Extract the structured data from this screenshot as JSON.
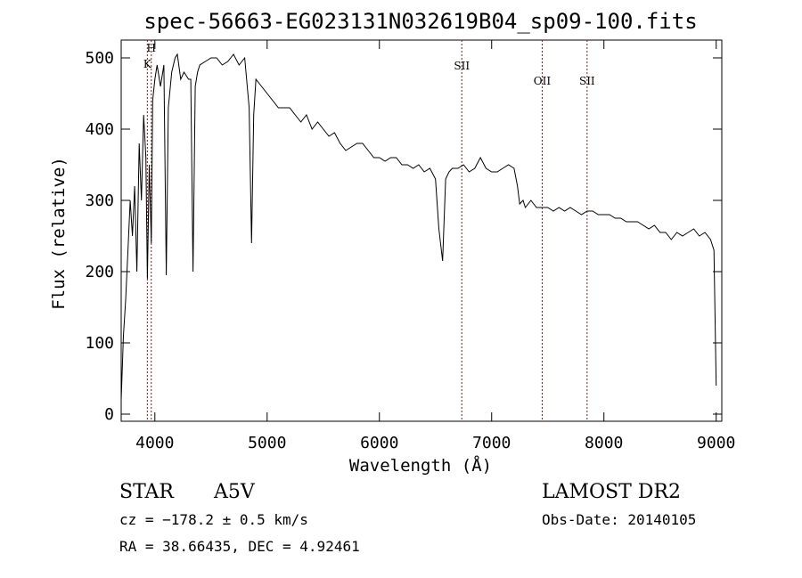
{
  "chart_data": {
    "type": "line",
    "title": "spec-56663-EG023131N032619B04_sp09-100.fits",
    "xlabel": "Wavelength (Å)",
    "ylabel": "Flux (relative)",
    "xlim": [
      3700,
      9050
    ],
    "ylim": [
      -10,
      525
    ],
    "x_ticks": [
      4000,
      5000,
      6000,
      7000,
      8000,
      9000
    ],
    "y_ticks": [
      0,
      100,
      200,
      300,
      400,
      500
    ],
    "grid": false,
    "series": [
      {
        "x": [
          3700,
          3720,
          3740,
          3760,
          3780,
          3800,
          3820,
          3840,
          3860,
          3880,
          3900,
          3920,
          3933,
          3950,
          3968,
          3980,
          4000,
          4020,
          4050,
          4080,
          4102,
          4120,
          4150,
          4180,
          4200,
          4230,
          4260,
          4300,
          4320,
          4340,
          4360,
          4380,
          4400,
          4450,
          4500,
          4550,
          4600,
          4650,
          4700,
          4750,
          4800,
          4840,
          4861,
          4880,
          4900,
          4950,
          5000,
          5050,
          5100,
          5150,
          5200,
          5250,
          5300,
          5350,
          5400,
          5450,
          5500,
          5550,
          5600,
          5650,
          5700,
          5750,
          5800,
          5850,
          5900,
          5950,
          6000,
          6050,
          6100,
          6150,
          6200,
          6250,
          6300,
          6350,
          6400,
          6450,
          6500,
          6530,
          6563,
          6590,
          6620,
          6650,
          6700,
          6750,
          6800,
          6850,
          6900,
          6950,
          7000,
          7050,
          7100,
          7150,
          7200,
          7230,
          7250,
          7280,
          7300,
          7350,
          7400,
          7450,
          7500,
          7550,
          7600,
          7650,
          7700,
          7750,
          7800,
          7850,
          7900,
          7950,
          8000,
          8050,
          8100,
          8150,
          8200,
          8250,
          8300,
          8350,
          8400,
          8450,
          8500,
          8550,
          8600,
          8650,
          8700,
          8750,
          8800,
          8850,
          8900,
          8950,
          8980,
          9000
        ],
        "y": [
          20,
          110,
          160,
          230,
          300,
          250,
          320,
          200,
          380,
          300,
          420,
          360,
          190,
          350,
          240,
          440,
          470,
          490,
          460,
          490,
          195,
          430,
          480,
          500,
          505,
          470,
          480,
          470,
          470,
          200,
          460,
          480,
          490,
          495,
          500,
          500,
          490,
          495,
          505,
          490,
          500,
          430,
          240,
          420,
          470,
          460,
          450,
          440,
          430,
          430,
          430,
          420,
          410,
          420,
          400,
          410,
          400,
          390,
          395,
          380,
          370,
          375,
          380,
          380,
          370,
          360,
          360,
          355,
          360,
          360,
          350,
          350,
          345,
          350,
          340,
          345,
          330,
          260,
          215,
          330,
          340,
          345,
          345,
          350,
          340,
          345,
          360,
          345,
          340,
          340,
          345,
          350,
          345,
          320,
          295,
          300,
          290,
          300,
          290,
          290,
          290,
          285,
          290,
          285,
          290,
          285,
          280,
          285,
          285,
          280,
          280,
          280,
          275,
          275,
          270,
          270,
          270,
          265,
          260,
          265,
          255,
          255,
          245,
          255,
          250,
          255,
          260,
          250,
          255,
          245,
          230,
          40
        ]
      }
    ],
    "line_markers": [
      {
        "label": "H",
        "wavelength": 3968
      },
      {
        "label": "K",
        "wavelength": 3933
      },
      {
        "label": "SII",
        "wavelength": 6734
      },
      {
        "label": "OII",
        "wavelength": 7450
      },
      {
        "label": "SII",
        "wavelength": 7850
      }
    ],
    "footer": {
      "object_class": "STAR",
      "subclass": "A5V",
      "survey": "LAMOST DR2",
      "cz": "cz = −178.2 ± 0.5 km/s",
      "obs_date": "Obs-Date: 20140105",
      "radec": "RA =  38.66435, DEC =   4.92461"
    },
    "colors": {
      "spectrum": "#000000",
      "marker_line": "#8b1a1a",
      "frame": "#000000"
    }
  }
}
